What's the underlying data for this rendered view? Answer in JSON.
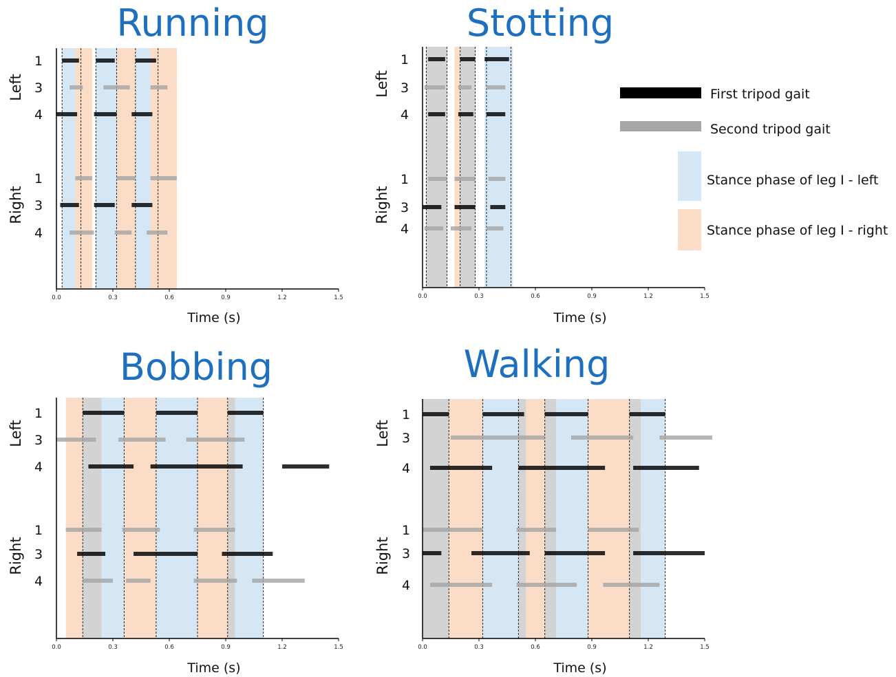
{
  "colors": {
    "title": "#1f6fbf",
    "first_tripod": "#000000",
    "second_tripod": "#a6a6a6",
    "stance_left": "#d5e7f5",
    "stance_right": "#fbdcc7",
    "stance_both": "#d3d3d3"
  },
  "legend": {
    "first_tripod": "First tripod gait",
    "second_tripod": "Second tripod gait",
    "stance_left": "Stance phase of leg I - left",
    "stance_right": "Stance phase of leg I - right"
  },
  "chart_data": [
    {
      "type": "timeline",
      "title": "Running",
      "xlabel": "Time (s)",
      "xlim": [
        0,
        1.5
      ],
      "xticks": [
        "0.0",
        "0.3",
        "0.6",
        "0.9",
        "1.2",
        "1.5"
      ],
      "groups": [
        "Left",
        "Right"
      ],
      "rows": [
        "1",
        "3",
        "4",
        "1",
        "3",
        "4"
      ],
      "stance_left": [
        [
          0.03,
          0.11
        ],
        [
          0.21,
          0.32
        ],
        [
          0.42,
          0.54
        ]
      ],
      "stance_right": [
        [
          0.1,
          0.19
        ],
        [
          0.32,
          0.42
        ],
        [
          0.5,
          0.64
        ]
      ],
      "boundaries": [
        0.03,
        0.13,
        0.21,
        0.32,
        0.42,
        0.54
      ],
      "bars": [
        {
          "row": 0,
          "tripod": "first",
          "start": 0.03,
          "end": 0.12
        },
        {
          "row": 0,
          "tripod": "first",
          "start": 0.21,
          "end": 0.31
        },
        {
          "row": 0,
          "tripod": "first",
          "start": 0.42,
          "end": 0.53
        },
        {
          "row": 1,
          "tripod": "second",
          "start": 0.07,
          "end": 0.14
        },
        {
          "row": 1,
          "tripod": "second",
          "start": 0.25,
          "end": 0.39
        },
        {
          "row": 1,
          "tripod": "second",
          "start": 0.5,
          "end": 0.59
        },
        {
          "row": 2,
          "tripod": "first",
          "start": 0.0,
          "end": 0.11
        },
        {
          "row": 2,
          "tripod": "first",
          "start": 0.2,
          "end": 0.32
        },
        {
          "row": 2,
          "tripod": "first",
          "start": 0.4,
          "end": 0.51
        },
        {
          "row": 3,
          "tripod": "second",
          "start": 0.1,
          "end": 0.19
        },
        {
          "row": 3,
          "tripod": "second",
          "start": 0.32,
          "end": 0.42
        },
        {
          "row": 3,
          "tripod": "second",
          "start": 0.5,
          "end": 0.64
        },
        {
          "row": 4,
          "tripod": "first",
          "start": 0.02,
          "end": 0.12
        },
        {
          "row": 4,
          "tripod": "first",
          "start": 0.2,
          "end": 0.31
        },
        {
          "row": 4,
          "tripod": "first",
          "start": 0.4,
          "end": 0.51
        },
        {
          "row": 5,
          "tripod": "second",
          "start": 0.07,
          "end": 0.2
        },
        {
          "row": 5,
          "tripod": "second",
          "start": 0.31,
          "end": 0.4
        },
        {
          "row": 5,
          "tripod": "second",
          "start": 0.48,
          "end": 0.59
        }
      ]
    },
    {
      "type": "timeline",
      "title": "Stotting",
      "xlabel": "Time (s)",
      "xlim": [
        0,
        1.5
      ],
      "xticks": [
        "0.0",
        "0.3",
        "0.6",
        "0.9",
        "1.2",
        "1.5"
      ],
      "groups": [
        "Left",
        "Right"
      ],
      "rows": [
        "1",
        "3",
        "4",
        "1",
        "3",
        "4"
      ],
      "stance_left": [
        [
          0.33,
          0.48
        ]
      ],
      "stance_right": [
        [
          0.17,
          0.21
        ]
      ],
      "stance_both": [
        [
          0.02,
          0.13
        ],
        [
          0.2,
          0.28
        ]
      ],
      "boundaries": [
        0.02,
        0.13,
        0.2,
        0.28,
        0.34,
        0.47
      ],
      "bars": [
        {
          "row": 0,
          "tripod": "first",
          "start": 0.03,
          "end": 0.12
        },
        {
          "row": 0,
          "tripod": "first",
          "start": 0.2,
          "end": 0.28
        },
        {
          "row": 0,
          "tripod": "first",
          "start": 0.33,
          "end": 0.46
        },
        {
          "row": 1,
          "tripod": "second",
          "start": 0.01,
          "end": 0.12
        },
        {
          "row": 1,
          "tripod": "second",
          "start": 0.19,
          "end": 0.26
        },
        {
          "row": 1,
          "tripod": "second",
          "start": 0.34,
          "end": 0.44
        },
        {
          "row": 2,
          "tripod": "first",
          "start": 0.03,
          "end": 0.12
        },
        {
          "row": 2,
          "tripod": "first",
          "start": 0.19,
          "end": 0.27
        },
        {
          "row": 2,
          "tripod": "first",
          "start": 0.34,
          "end": 0.44
        },
        {
          "row": 3,
          "tripod": "second",
          "start": 0.03,
          "end": 0.13
        },
        {
          "row": 3,
          "tripod": "second",
          "start": 0.17,
          "end": 0.28
        },
        {
          "row": 3,
          "tripod": "second",
          "start": 0.35,
          "end": 0.44
        },
        {
          "row": 4,
          "tripod": "first",
          "start": 0.0,
          "end": 0.1
        },
        {
          "row": 4,
          "tripod": "first",
          "start": 0.17,
          "end": 0.28
        },
        {
          "row": 4,
          "tripod": "first",
          "start": 0.36,
          "end": 0.44
        },
        {
          "row": 5,
          "tripod": "second",
          "start": 0.01,
          "end": 0.11
        },
        {
          "row": 5,
          "tripod": "second",
          "start": 0.15,
          "end": 0.26
        },
        {
          "row": 5,
          "tripod": "second",
          "start": 0.34,
          "end": 0.43
        }
      ]
    },
    {
      "type": "timeline",
      "title": "Bobbing",
      "xlabel": "Time (s)",
      "xlim": [
        0,
        1.5
      ],
      "xticks": [
        "0.0",
        "0.3",
        "0.6",
        "0.9",
        "1.2",
        "1.5"
      ],
      "groups": [
        "Left",
        "Right"
      ],
      "rows": [
        "1",
        "3",
        "4",
        "1",
        "3",
        "4"
      ],
      "stance_left": [
        [
          0.24,
          0.36
        ],
        [
          0.53,
          0.75
        ],
        [
          0.95,
          1.1
        ]
      ],
      "stance_right": [
        [
          0.05,
          0.14
        ],
        [
          0.36,
          0.53
        ],
        [
          0.75,
          0.91
        ]
      ],
      "stance_both": [
        [
          0.14,
          0.24
        ],
        [
          0.91,
          0.95
        ]
      ],
      "boundaries": [
        0.14,
        0.36,
        0.53,
        0.75,
        0.91,
        1.1
      ],
      "bars": [
        {
          "row": 0,
          "tripod": "first",
          "start": 0.14,
          "end": 0.36
        },
        {
          "row": 0,
          "tripod": "first",
          "start": 0.53,
          "end": 0.75
        },
        {
          "row": 0,
          "tripod": "first",
          "start": 0.91,
          "end": 1.1
        },
        {
          "row": 1,
          "tripod": "second",
          "start": 0.0,
          "end": 0.21
        },
        {
          "row": 1,
          "tripod": "second",
          "start": 0.33,
          "end": 0.58
        },
        {
          "row": 1,
          "tripod": "second",
          "start": 0.69,
          "end": 1.0
        },
        {
          "row": 2,
          "tripod": "first",
          "start": 0.17,
          "end": 0.41
        },
        {
          "row": 2,
          "tripod": "first",
          "start": 0.5,
          "end": 0.99
        },
        {
          "row": 2,
          "tripod": "first",
          "start": 1.2,
          "end": 1.45
        },
        {
          "row": 3,
          "tripod": "second",
          "start": 0.05,
          "end": 0.24
        },
        {
          "row": 3,
          "tripod": "second",
          "start": 0.35,
          "end": 0.55
        },
        {
          "row": 3,
          "tripod": "second",
          "start": 0.73,
          "end": 0.95
        },
        {
          "row": 4,
          "tripod": "first",
          "start": 0.11,
          "end": 0.26
        },
        {
          "row": 4,
          "tripod": "first",
          "start": 0.41,
          "end": 0.75
        },
        {
          "row": 4,
          "tripod": "first",
          "start": 0.88,
          "end": 1.15
        },
        {
          "row": 5,
          "tripod": "second",
          "start": 0.14,
          "end": 0.3
        },
        {
          "row": 5,
          "tripod": "second",
          "start": 0.37,
          "end": 0.5
        },
        {
          "row": 5,
          "tripod": "second",
          "start": 0.73,
          "end": 0.96
        },
        {
          "row": 5,
          "tripod": "second",
          "start": 1.04,
          "end": 1.32
        }
      ]
    },
    {
      "type": "timeline",
      "title": "Walking",
      "xlabel": "Time (s)",
      "xlim": [
        0,
        1.5
      ],
      "xticks": [
        "0.0",
        "0.3",
        "0.6",
        "0.9",
        "1.2",
        "1.5"
      ],
      "groups": [
        "Left",
        "Right"
      ],
      "rows": [
        "1",
        "3",
        "4",
        "1",
        "3",
        "4"
      ],
      "stance_left": [
        [
          0.32,
          0.51
        ],
        [
          0.71,
          0.88
        ],
        [
          1.16,
          1.29
        ]
      ],
      "stance_right": [
        [
          0.14,
          0.32
        ],
        [
          0.55,
          0.65
        ],
        [
          0.88,
          1.1
        ]
      ],
      "stance_both": [
        [
          0.0,
          0.14
        ],
        [
          0.51,
          0.55
        ],
        [
          0.65,
          0.71
        ],
        [
          1.1,
          1.16
        ]
      ],
      "boundaries": [
        0.14,
        0.32,
        0.51,
        0.65,
        0.88,
        1.1,
        1.29
      ],
      "bars": [
        {
          "row": 0,
          "tripod": "first",
          "start": 0.0,
          "end": 0.14
        },
        {
          "row": 0,
          "tripod": "first",
          "start": 0.32,
          "end": 0.54
        },
        {
          "row": 0,
          "tripod": "first",
          "start": 0.65,
          "end": 0.88
        },
        {
          "row": 0,
          "tripod": "first",
          "start": 1.1,
          "end": 1.29
        },
        {
          "row": 1,
          "tripod": "second",
          "start": 0.15,
          "end": 0.65
        },
        {
          "row": 1,
          "tripod": "second",
          "start": 0.79,
          "end": 1.12
        },
        {
          "row": 1,
          "tripod": "second",
          "start": 1.26,
          "end": 1.54
        },
        {
          "row": 2,
          "tripod": "first",
          "start": 0.04,
          "end": 0.37
        },
        {
          "row": 2,
          "tripod": "first",
          "start": 0.51,
          "end": 0.97
        },
        {
          "row": 2,
          "tripod": "first",
          "start": 1.12,
          "end": 1.47
        },
        {
          "row": 3,
          "tripod": "second",
          "start": 0.0,
          "end": 0.32
        },
        {
          "row": 3,
          "tripod": "second",
          "start": 0.5,
          "end": 0.71
        },
        {
          "row": 3,
          "tripod": "second",
          "start": 0.88,
          "end": 1.15
        },
        {
          "row": 4,
          "tripod": "first",
          "start": 0.0,
          "end": 0.1
        },
        {
          "row": 4,
          "tripod": "first",
          "start": 0.26,
          "end": 0.57
        },
        {
          "row": 4,
          "tripod": "first",
          "start": 0.65,
          "end": 0.97
        },
        {
          "row": 4,
          "tripod": "first",
          "start": 1.12,
          "end": 1.5
        },
        {
          "row": 5,
          "tripod": "second",
          "start": 0.04,
          "end": 0.37
        },
        {
          "row": 5,
          "tripod": "second",
          "start": 0.5,
          "end": 0.82
        },
        {
          "row": 5,
          "tripod": "second",
          "start": 0.96,
          "end": 1.26
        }
      ]
    }
  ]
}
